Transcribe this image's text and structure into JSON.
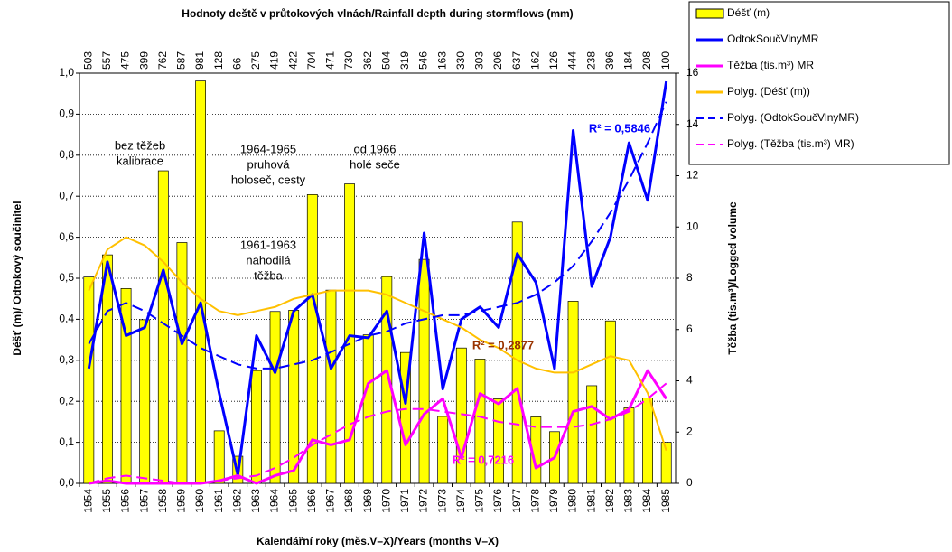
{
  "chart_data": {
    "type": "bar",
    "title": "Hodnoty deště v průtokových vlnách/Rainfall depth during stormflows (mm)",
    "x_label": "Kalendářní roky (měs.V–X)/Years (months V–X)",
    "y_label": "Déšť (m)/ Odtokový součinitel",
    "y2_label": "Těžba (tis.m³)/Logged volume",
    "categories": [
      "1954",
      "1955",
      "1956",
      "1957",
      "1958",
      "1959",
      "1960",
      "1961",
      "1962",
      "1963",
      "1964",
      "1965",
      "1966",
      "1967",
      "1968",
      "1969",
      "1970",
      "1971",
      "1972",
      "1973",
      "1974",
      "1975",
      "1976",
      "1977",
      "1978",
      "1979",
      "1980",
      "1981",
      "1982",
      "1983",
      "1984",
      "1985"
    ],
    "ylim": [
      0,
      1
    ],
    "yticks": [
      {
        "value": 0,
        "label": "0,0"
      },
      {
        "value": 0.1,
        "label": "0,1"
      },
      {
        "value": 0.2,
        "label": "0,2"
      },
      {
        "value": 0.3,
        "label": "0,3"
      },
      {
        "value": 0.4,
        "label": "0,4"
      },
      {
        "value": 0.5,
        "label": "0,5"
      },
      {
        "value": 0.6,
        "label": "0,6"
      },
      {
        "value": 0.7,
        "label": "0,7"
      },
      {
        "value": 0.8,
        "label": "0,8"
      },
      {
        "value": 0.9,
        "label": "0,9"
      },
      {
        "value": 1,
        "label": "1,0"
      }
    ],
    "y2lim": [
      0,
      16
    ],
    "y2ticks": [
      0,
      2,
      4,
      6,
      8,
      10,
      12,
      14,
      16
    ],
    "grid": true,
    "legend": "right",
    "series": [
      {
        "name": "Déšť (m)",
        "type": "bar",
        "color": "#ffff00",
        "values": [
          0.503,
          0.557,
          0.475,
          0.399,
          0.762,
          0.587,
          0.981,
          0.128,
          0.066,
          0.275,
          0.419,
          0.422,
          0.704,
          0.471,
          0.73,
          0.362,
          0.504,
          0.319,
          0.546,
          0.163,
          0.33,
          0.303,
          0.206,
          0.637,
          0.162,
          0.126,
          0.444,
          0.238,
          0.396,
          0.184,
          0.208,
          0.1
        ],
        "value_labels": [
          "503",
          "557",
          "475",
          "399",
          "762",
          "587",
          "981",
          "128",
          "66",
          "275",
          "419",
          "422",
          "704",
          "471",
          "730",
          "362",
          "504",
          "319",
          "546",
          "163",
          "330",
          "303",
          "206",
          "637",
          "162",
          "126",
          "444",
          "238",
          "396",
          "184",
          "208",
          "100"
        ]
      },
      {
        "name": "OdtokSoučVlnyMR",
        "type": "line",
        "color": "#0000ff",
        "values": [
          0.28,
          0.54,
          0.36,
          0.38,
          0.52,
          0.34,
          0.44,
          0.22,
          0.02,
          0.36,
          0.27,
          0.42,
          0.46,
          0.28,
          0.36,
          0.355,
          0.42,
          0.195,
          0.61,
          0.23,
          0.4,
          0.43,
          0.38,
          0.56,
          0.49,
          0.28,
          0.86,
          0.48,
          0.6,
          0.83,
          0.69,
          0.98
        ]
      },
      {
        "name": "Těžba (tis.m³) MR",
        "type": "line",
        "color": "#ff00ff",
        "axis": "y2",
        "values": [
          0,
          0.1,
          0,
          0,
          0,
          0,
          0,
          0.1,
          0.3,
          0,
          0.3,
          0.5,
          1.7,
          1.5,
          1.7,
          3.9,
          4.4,
          1.5,
          2.7,
          3.3,
          1.0,
          3.5,
          3.1,
          3.7,
          0.6,
          1.0,
          2.8,
          3.0,
          2.5,
          2.9,
          4.4,
          3.3
        ]
      },
      {
        "name": "Polyg. (Déšť (m))",
        "type": "line",
        "color": "#ffc000",
        "values": [
          0.47,
          0.57,
          0.6,
          0.58,
          0.54,
          0.49,
          0.45,
          0.42,
          0.41,
          0.42,
          0.43,
          0.45,
          0.46,
          0.47,
          0.47,
          0.47,
          0.46,
          0.44,
          0.42,
          0.4,
          0.38,
          0.35,
          0.33,
          0.3,
          0.28,
          0.27,
          0.27,
          0.29,
          0.31,
          0.3,
          0.22,
          0.08
        ]
      },
      {
        "name": "Polyg. (OdtokSoučVlnyMR)",
        "type": "line",
        "dash": true,
        "color": "#0000ff",
        "values": [
          0.34,
          0.42,
          0.44,
          0.42,
          0.39,
          0.36,
          0.33,
          0.31,
          0.29,
          0.28,
          0.28,
          0.29,
          0.3,
          0.32,
          0.34,
          0.36,
          0.37,
          0.39,
          0.4,
          0.41,
          0.41,
          0.42,
          0.43,
          0.44,
          0.46,
          0.49,
          0.53,
          0.59,
          0.66,
          0.74,
          0.83,
          0.93
        ]
      },
      {
        "name": "Polyg. (Těžba (tis.m³) MR)",
        "type": "line",
        "dash": true,
        "color": "#ff00ff",
        "axis": "y2",
        "values": [
          0,
          0.2,
          0.3,
          0.2,
          0.1,
          0,
          0,
          0.1,
          0.2,
          0.3,
          0.6,
          1.0,
          1.5,
          1.9,
          2.3,
          2.6,
          2.8,
          2.9,
          2.9,
          2.8,
          2.7,
          2.6,
          2.4,
          2.3,
          2.2,
          2.2,
          2.2,
          2.3,
          2.5,
          2.8,
          3.3,
          3.9
        ]
      }
    ],
    "annotations": [
      {
        "lines": [
          "bez těžeb",
          "kalibrace"
        ],
        "color": "#000000"
      },
      {
        "lines": [
          "1964-1965",
          "pruhová",
          "holoseč, cesty"
        ],
        "color": "#000000"
      },
      {
        "lines": [
          "od 1966",
          "holé seče"
        ],
        "color": "#000000"
      },
      {
        "lines": [
          "1961-1963",
          "nahodilá",
          "těžba"
        ],
        "color": "#000000"
      },
      {
        "lines": [
          "R² = 0,5846"
        ],
        "color": "#0000ff"
      },
      {
        "lines": [
          "R² = 0,2877"
        ],
        "color": "#993300"
      },
      {
        "lines": [
          "R² = 0,7216"
        ],
        "color": "#ff00ff"
      }
    ]
  }
}
